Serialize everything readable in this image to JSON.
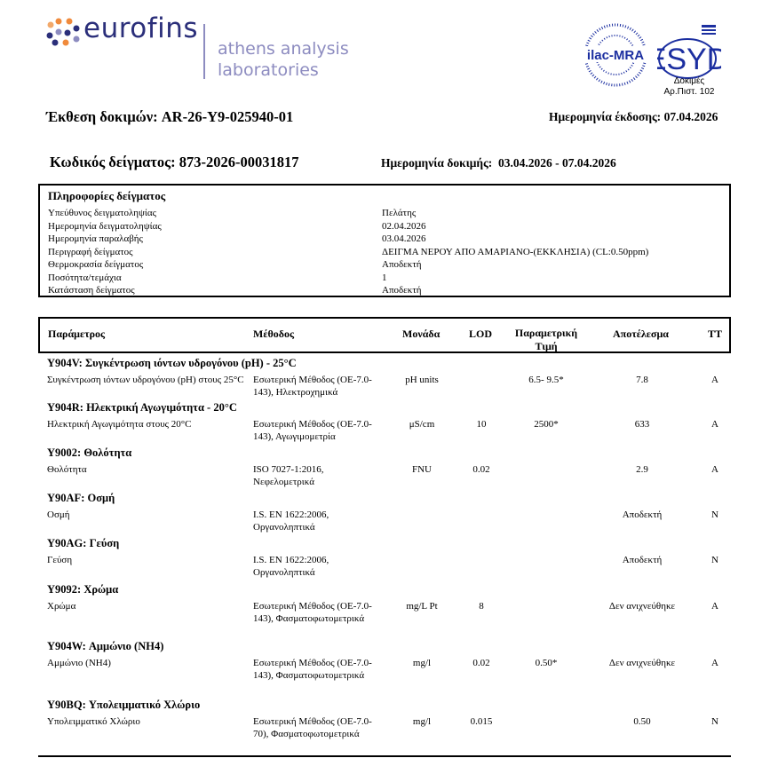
{
  "header": {
    "brand": "eurofins",
    "lab_line1": "athens analysis",
    "lab_line2": "laboratories",
    "accreditation": {
      "ilac": "ilac-MRA",
      "esyd": "ESYD",
      "line1": "Δοκιμές",
      "line2": "Αρ.Πιστ. 102"
    }
  },
  "report": {
    "title_label": "Έκθεση δοκιμών:",
    "title_value": "AR-26-Y9-025940-01",
    "issue_label": "Ημερομηνία έκδοσης:",
    "issue_value": "07.04.2026",
    "sample_code_label": "Κωδικός δείγματος:",
    "sample_code_value": "873-2026-00031817",
    "test_date_label": "Ημερομηνία δοκιμής:",
    "test_date_value": "03.04.2026 - 07.04.2026"
  },
  "sample_info": {
    "title": "Πληροφορίες δείγματος",
    "rows": [
      {
        "label": "Υπεύθυνος δειγματοληψίας",
        "value": "Πελάτης"
      },
      {
        "label": "Ημερομηνία δειγματοληψίας",
        "value": "02.04.2026"
      },
      {
        "label": "Ημερομηνία παραλαβής",
        "value": "03.04.2026"
      },
      {
        "label": "Περιγραφή δείγματος",
        "value": "ΔΕΙΓΜΑ ΝΕΡΟΥ ΑΠΟ ΑΜΑΡΙΑΝΟ-(ΕΚΚΛΗΣΙΑ) (CL:0.50ppm)"
      },
      {
        "label": "Θερμοκρασία δείγματος",
        "value": "Αποδεκτή"
      },
      {
        "label": "Ποσότητα/τεμάχια",
        "value": "1"
      },
      {
        "label": "Κατάσταση δείγματος",
        "value": "Αποδεκτή"
      }
    ]
  },
  "table": {
    "columns": [
      "Παράμετρος",
      "Μέθοδος",
      "Μονάδα",
      "LOD",
      "Παραμετρική Τιμή",
      "Αποτέλεσμα",
      "ΤΤ"
    ],
    "groups": [
      {
        "title": "Y904V: Συγκέντρωση ιόντων υδρογόνου (pH) - 25°C",
        "param": "Συγκέντρωση ιόντων υδρογόνου (pH)  στους 25°C",
        "method": "Εσωτερική Μέθοδος (ΟΕ-7.0-143), Ηλεκτροχημικά",
        "unit": "pH units",
        "lod": "",
        "limit": "6.5- 9.5*",
        "result": "7.8",
        "tt": "A"
      },
      {
        "title": "Y904R: Ηλεκτρική Αγωγιμότητα - 20°C",
        "param": "Ηλεκτρική Αγωγιμότητα στους 20°C",
        "method": "Εσωτερική Μέθοδος (ΟΕ-7.0-143), Αγωγιμομετρία",
        "unit": "μS/cm",
        "lod": "10",
        "limit": "2500*",
        "result": "633",
        "tt": "A"
      },
      {
        "title": "Y9002: Θολότητα",
        "param": "Θολότητα",
        "method": "ISO 7027-1:2016, Νεφελομετρικά",
        "unit": "FNU",
        "lod": "0.02",
        "limit": "",
        "result": "2.9",
        "tt": "A"
      },
      {
        "title": "Y90AF: Οσμή",
        "param": "Οσμή",
        "method": "I.S. EN 1622:2006, Οργανοληπτικά",
        "unit": "",
        "lod": "",
        "limit": "",
        "result": "Αποδεκτή",
        "tt": "N"
      },
      {
        "title": "Y90AG: Γεύση",
        "param": "Γεύση",
        "method": "I.S. EN 1622:2006, Οργανοληπτικά",
        "unit": "",
        "lod": "",
        "limit": "",
        "result": "Αποδεκτή",
        "tt": "N"
      },
      {
        "title": "Y9092: Χρώμα",
        "param": "Χρώμα",
        "method": "Εσωτερική Μέθοδος (ΟΕ-7.0-143), Φασματοφωτομετρικά",
        "unit": "mg/L Pt",
        "lod": "8",
        "limit": "",
        "result": "Δεν ανιχνεύθηκε",
        "tt": "A"
      },
      {
        "title": "Y904W: Αμμώνιο (NH4)",
        "param": "Αμμώνιο (NH4)",
        "method": "Εσωτερική Μέθοδος (ΟΕ-7.0-143), Φασματοφωτομετρικά",
        "unit": "mg/l",
        "lod": "0.02",
        "limit": "0.50*",
        "result": "Δεν ανιχνεύθηκε",
        "tt": "A"
      },
      {
        "title": "Y90BQ: Υπολειμματικό Χλώριο",
        "param": "Υπολειμματικό Χλώριο",
        "method": "Εσωτερική Μέθοδος (ΟΕ-7.0-70), Φασματοφωτομετρικά",
        "unit": "mg/l",
        "lod": "0.015",
        "limit": "",
        "result": "0.50",
        "tt": "N"
      }
    ]
  }
}
